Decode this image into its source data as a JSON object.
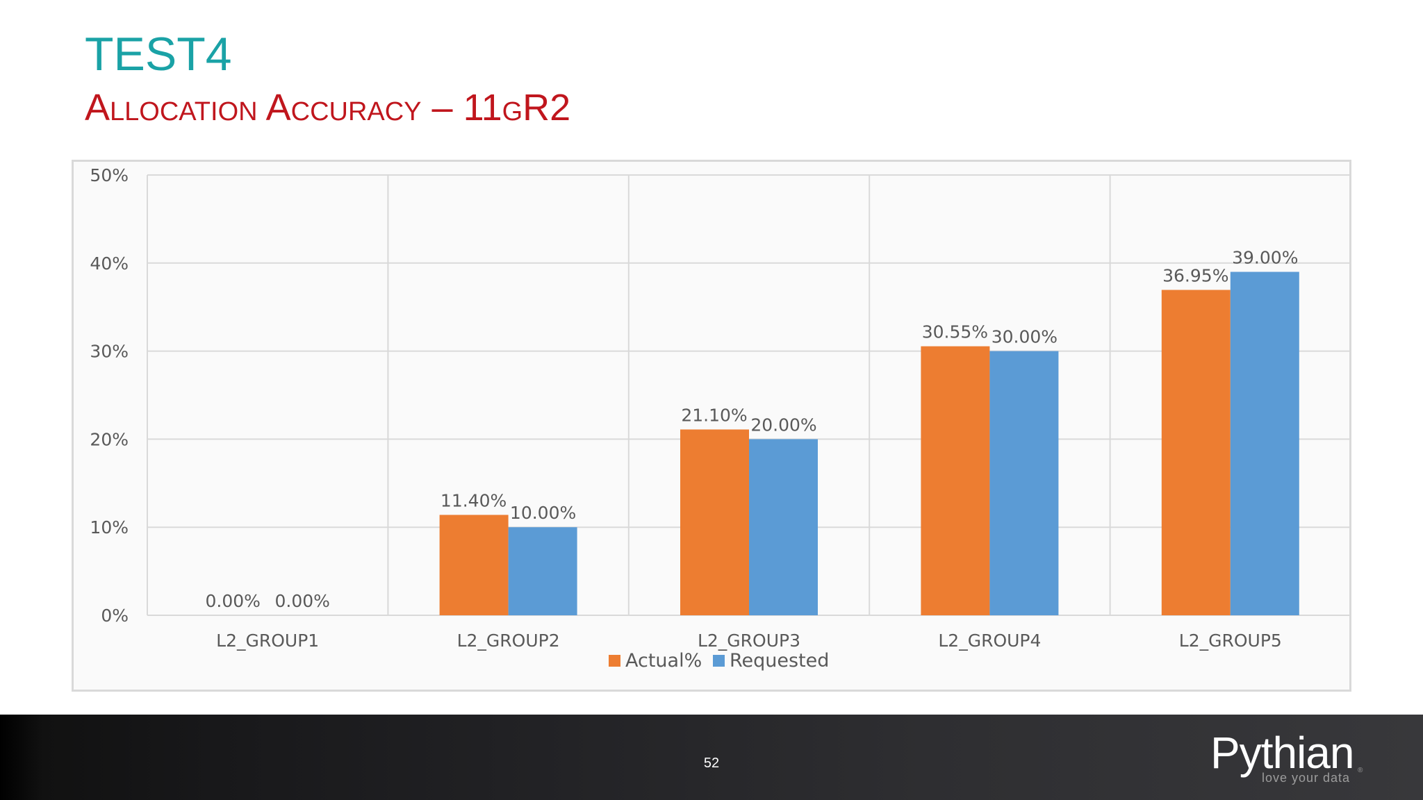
{
  "slide": {
    "title": "TEST4",
    "subtitle": "Allocation Accuracy – 11gR2",
    "page_number": "52",
    "title_color": "#1aa2a6",
    "subtitle_color": "#c0161d"
  },
  "footer": {
    "logo_text": "Pythian",
    "logo_tagline": "love your data",
    "logo_reg": "®",
    "text_color": "#ffffff",
    "tagline_color": "#9c9c9c"
  },
  "chart_data": {
    "type": "bar",
    "title": "",
    "xlabel": "",
    "ylabel": "",
    "categories": [
      "L2_GROUP1",
      "L2_GROUP2",
      "L2_GROUP3",
      "L2_GROUP4",
      "L2_GROUP5"
    ],
    "series": [
      {
        "name": "Actual%",
        "color": "#ed7d31",
        "values": [
          0.0,
          11.4,
          21.1,
          30.55,
          36.95
        ],
        "labels": [
          "0.00%",
          "11.40%",
          "21.10%",
          "30.55%",
          "36.95%"
        ]
      },
      {
        "name": "Requested",
        "color": "#5b9bd5",
        "values": [
          0.0,
          10.0,
          20.0,
          30.0,
          39.0
        ],
        "labels": [
          "0.00%",
          "10.00%",
          "20.00%",
          "30.00%",
          "39.00%"
        ]
      }
    ],
    "ylim": [
      0,
      50
    ],
    "yticks": [
      0,
      10,
      20,
      30,
      40,
      50
    ],
    "ytick_labels": [
      "0%",
      "10%",
      "20%",
      "30%",
      "40%",
      "50%"
    ],
    "grid": true,
    "legend_position": "bottom-center",
    "text_color": "#595959",
    "grid_color": "#d9d9d9"
  }
}
